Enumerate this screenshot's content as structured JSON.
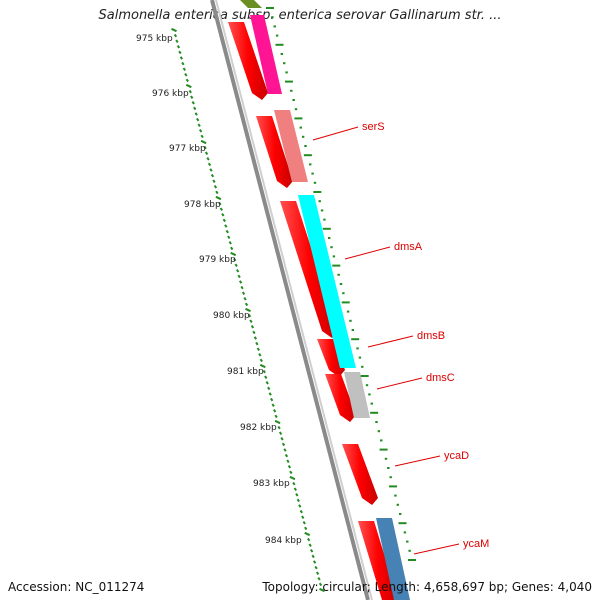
{
  "title": "Salmonella enterica subsp. enterica serovar Gallinarum str. ...",
  "accession": "Accession: NC_011274",
  "summary": "Topology: circular; Length: 4,658,697 bp; Genes: 4,040",
  "ticks": [
    "975 kbp",
    "976 kbp",
    "977 kbp",
    "978 kbp",
    "979 kbp",
    "980 kbp",
    "981 kbp",
    "982 kbp",
    "983 kbp",
    "984 kbp"
  ],
  "gene_labels": [
    "serS",
    "dmsA",
    "dmsB",
    "dmsC",
    "ycaD",
    "ycaM"
  ],
  "colors": {
    "cds": "#ff0000",
    "backbone": "#888888",
    "tick_dots": "#228b22",
    "label": "#dd0000",
    "serS": "#f08080",
    "dmsA": "#00ffff",
    "dmsC": "#c0c0c0",
    "ycaM": "#4682b4",
    "top_pink": "#ff1493",
    "top_olive": "#6b8e23"
  }
}
